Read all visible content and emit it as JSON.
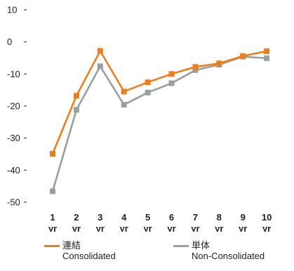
{
  "colors": {
    "consolidated": "#EE7D1E",
    "non_consolidated": "#97A09D",
    "axis_text": "#222222"
  },
  "chart_data": {
    "type": "line",
    "categories": [
      "1",
      "2",
      "3",
      "4",
      "5",
      "6",
      "7",
      "8",
      "9",
      "10"
    ],
    "category_unit": "yr",
    "ylim": [
      -50,
      10
    ],
    "y_ticks": [
      10,
      0,
      -10,
      -20,
      -30,
      -40,
      -50
    ],
    "y_tick_labels": [
      "10",
      "0",
      "-10",
      "-20",
      "-30",
      "-40",
      "-50"
    ],
    "grid": false,
    "series": [
      {
        "name_ja": "連結",
        "name_en": "Consolidated",
        "color": "#EE7D1E",
        "marker": "square",
        "values": [
          -34.9,
          -16.8,
          -2.8,
          -15.5,
          -12.6,
          -10.0,
          -7.8,
          -6.7,
          -4.4,
          -2.9
        ]
      },
      {
        "name_ja": "単体",
        "name_en": "Non-Consolidated",
        "color": "#97A09D",
        "marker": "square",
        "values": [
          -46.6,
          -21.2,
          -7.6,
          -19.6,
          -15.8,
          -12.9,
          -8.8,
          -7.1,
          -4.6,
          -5.1
        ]
      }
    ],
    "legend_position": "bottom"
  }
}
